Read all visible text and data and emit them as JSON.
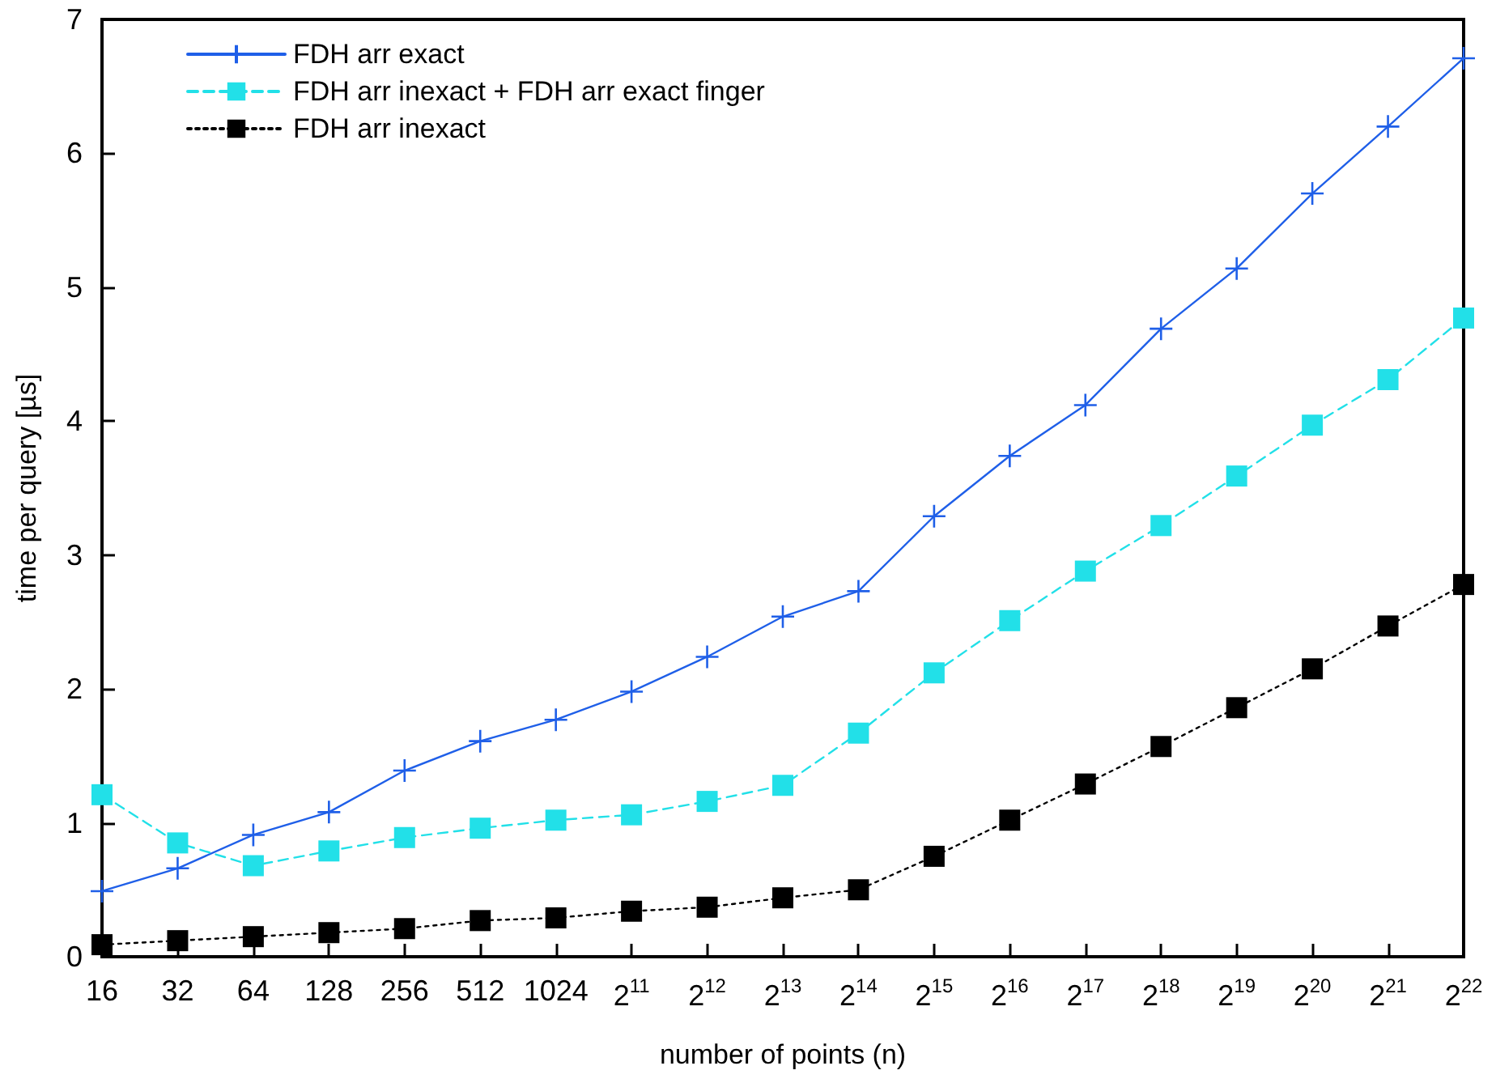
{
  "chart_data": {
    "type": "line",
    "xlabel": "number of points (n)",
    "ylabel": "time per query [µs]",
    "categories": [
      "16",
      "32",
      "64",
      "128",
      "256",
      "512",
      "1024",
      "2$^{11}$",
      "2$^{12}$",
      "2$^{13}$",
      "2$^{14}$",
      "2$^{15}$",
      "2$^{16}$",
      "2$^{17}$",
      "2$^{18}$",
      "2$^{19}$",
      "2$^{20}$",
      "2$^{21}$",
      "2$^{22}$"
    ],
    "series": [
      {
        "name": "FDH arr exact",
        "color": "#1f5fe8",
        "marker": "cross",
        "line_style": "solid",
        "values": [
          0.49,
          0.66,
          0.91,
          1.08,
          1.39,
          1.61,
          1.77,
          1.98,
          2.24,
          2.54,
          2.73,
          3.29,
          3.74,
          4.12,
          4.69,
          5.14,
          5.7,
          6.2,
          6.71
        ]
      },
      {
        "name": "FDH arr inexact + FDH arr exact finger",
        "color": "#22e0e8",
        "marker": "square",
        "line_style": "dashed",
        "values": [
          1.21,
          0.85,
          0.68,
          0.79,
          0.89,
          0.96,
          1.02,
          1.06,
          1.16,
          1.28,
          1.67,
          2.12,
          2.51,
          2.88,
          3.22,
          3.59,
          3.97,
          4.31,
          4.77
        ]
      },
      {
        "name": "FDH arr inexact",
        "color": "#000000",
        "marker": "square",
        "line_style": "dotted",
        "values": [
          0.09,
          0.12,
          0.15,
          0.18,
          0.21,
          0.27,
          0.29,
          0.34,
          0.37,
          0.44,
          0.5,
          0.75,
          1.02,
          1.29,
          1.57,
          1.86,
          2.15,
          2.47,
          2.78
        ]
      }
    ],
    "ylim": [
      0,
      7
    ],
    "yticks": [
      0,
      1,
      2,
      3,
      4,
      5,
      6,
      7
    ],
    "grid": false,
    "legend": "top left"
  }
}
